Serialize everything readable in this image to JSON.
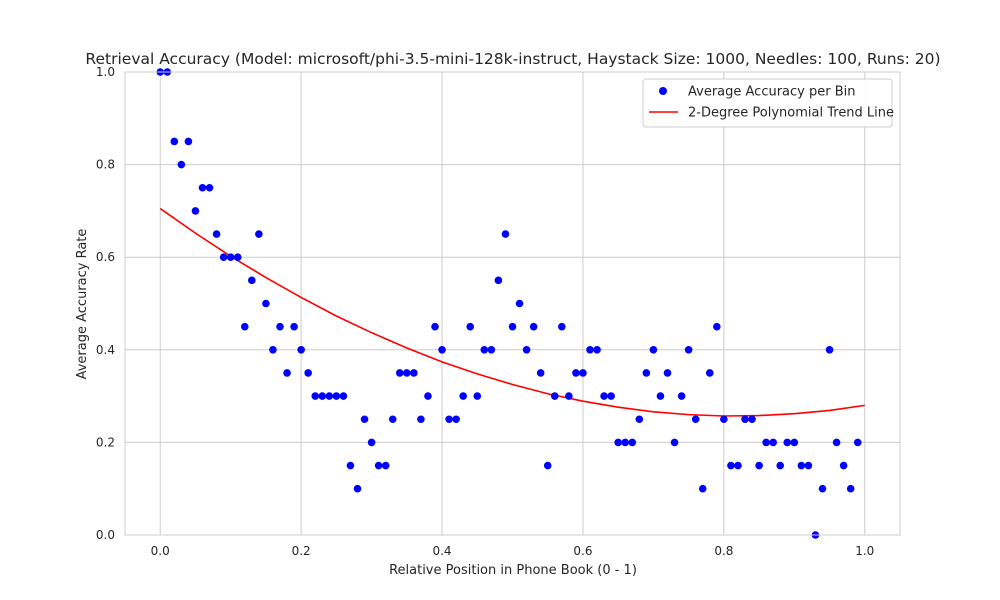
{
  "chart_data": {
    "type": "scatter",
    "title": "Retrieval Accuracy (Model: microsoft/phi-3.5-mini-128k-instruct, Haystack Size: 1000, Needles: 100, Runs: 20)",
    "xlabel": "Relative Position in Phone Book (0 - 1)",
    "ylabel": "Average Accuracy Rate",
    "xlim": [
      -0.05,
      1.05
    ],
    "ylim": [
      0,
      1.0
    ],
    "xticks": [
      0.0,
      0.2,
      0.4,
      0.6,
      0.8,
      1.0
    ],
    "xtick_labels": [
      "0.0",
      "0.2",
      "0.4",
      "0.6",
      "0.8",
      "1.0"
    ],
    "yticks": [
      0.0,
      0.2,
      0.4,
      0.6,
      0.8,
      1.0
    ],
    "ytick_labels": [
      "0.0",
      "0.2",
      "0.4",
      "0.6",
      "0.8",
      "1.0"
    ],
    "grid": true,
    "legend_position": "top-right",
    "scatter_series": {
      "name": "Average Accuracy per Bin",
      "color": "#0000ff",
      "x": [
        0.0,
        0.01,
        0.02,
        0.03,
        0.04,
        0.05,
        0.06,
        0.07,
        0.08,
        0.09,
        0.1,
        0.11,
        0.12,
        0.13,
        0.14,
        0.15,
        0.16,
        0.17,
        0.18,
        0.19,
        0.2,
        0.21,
        0.22,
        0.23,
        0.24,
        0.25,
        0.26,
        0.27,
        0.28,
        0.29,
        0.3,
        0.31,
        0.32,
        0.33,
        0.34,
        0.35,
        0.36,
        0.37,
        0.38,
        0.39,
        0.4,
        0.41,
        0.42,
        0.43,
        0.44,
        0.45,
        0.46,
        0.47,
        0.48,
        0.49,
        0.5,
        0.51,
        0.52,
        0.53,
        0.54,
        0.55,
        0.56,
        0.57,
        0.58,
        0.59,
        0.6,
        0.61,
        0.62,
        0.63,
        0.64,
        0.65,
        0.66,
        0.67,
        0.68,
        0.69,
        0.7,
        0.71,
        0.72,
        0.73,
        0.74,
        0.75,
        0.76,
        0.77,
        0.78,
        0.79,
        0.8,
        0.81,
        0.82,
        0.83,
        0.84,
        0.85,
        0.86,
        0.87,
        0.88,
        0.89,
        0.9,
        0.91,
        0.92,
        0.93,
        0.94,
        0.95,
        0.96,
        0.97,
        0.98,
        0.99
      ],
      "y": [
        1.0,
        1.0,
        0.85,
        0.8,
        0.85,
        0.7,
        0.75,
        0.75,
        0.65,
        0.6,
        0.6,
        0.6,
        0.45,
        0.55,
        0.65,
        0.5,
        0.4,
        0.45,
        0.35,
        0.45,
        0.4,
        0.35,
        0.3,
        0.3,
        0.3,
        0.3,
        0.3,
        0.15,
        0.1,
        0.25,
        0.2,
        0.15,
        0.15,
        0.25,
        0.35,
        0.35,
        0.35,
        0.25,
        0.3,
        0.45,
        0.4,
        0.25,
        0.25,
        0.3,
        0.45,
        0.3,
        0.4,
        0.4,
        0.55,
        0.65,
        0.45,
        0.5,
        0.4,
        0.45,
        0.35,
        0.15,
        0.3,
        0.45,
        0.3,
        0.35,
        0.35,
        0.4,
        0.4,
        0.3,
        0.3,
        0.2,
        0.2,
        0.2,
        0.25,
        0.35,
        0.4,
        0.3,
        0.35,
        0.2,
        0.3,
        0.4,
        0.25,
        0.1,
        0.35,
        0.45,
        0.25,
        0.15,
        0.15,
        0.25,
        0.25,
        0.15,
        0.2,
        0.2,
        0.15,
        0.2,
        0.2,
        0.15,
        0.15,
        0.0,
        0.1,
        0.4,
        0.2,
        0.15,
        0.1,
        0.2
      ]
    },
    "trend_series": {
      "name": "2-Degree Polynomial Trend Line",
      "color": "#ff0000",
      "x": [
        0.0,
        0.05,
        0.1,
        0.15,
        0.2,
        0.25,
        0.3,
        0.35,
        0.4,
        0.45,
        0.5,
        0.55,
        0.6,
        0.65,
        0.7,
        0.75,
        0.8,
        0.85,
        0.9,
        0.95,
        1.0
      ],
      "y": [
        0.705,
        0.652,
        0.602,
        0.556,
        0.513,
        0.473,
        0.437,
        0.404,
        0.374,
        0.348,
        0.325,
        0.305,
        0.289,
        0.276,
        0.266,
        0.26,
        0.257,
        0.258,
        0.262,
        0.269,
        0.28
      ]
    }
  }
}
